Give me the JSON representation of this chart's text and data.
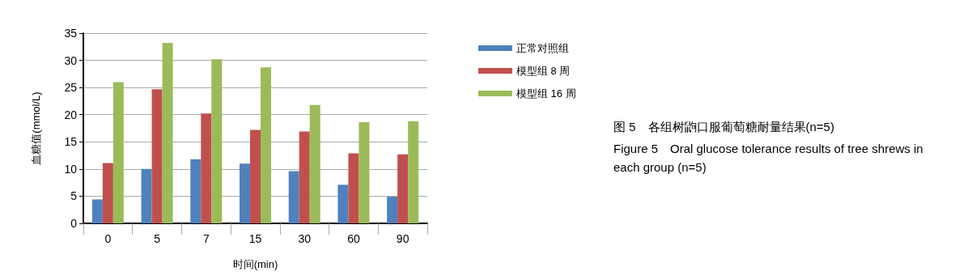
{
  "chart_data": {
    "type": "bar",
    "title": "图 5　各组树鼩口服葡萄糖耐量结果(n=5)",
    "subtitle": "Figure 5　Oral glucose tolerance results of tree shrews in each group (n=5)",
    "xlabel": "时间(min)",
    "ylabel": "血糖值(mmol/L)",
    "categories": [
      "0",
      "5",
      "7",
      "15",
      "30",
      "60",
      "90"
    ],
    "series": [
      {
        "name": "正常对照组",
        "color": "#4f81bd",
        "values": [
          4.4,
          10.0,
          11.8,
          11.0,
          9.6,
          7.1,
          4.9
        ]
      },
      {
        "name": "模型组 8 周",
        "color": "#c0504d",
        "values": [
          11.1,
          24.7,
          20.2,
          17.2,
          16.9,
          12.9,
          12.7
        ]
      },
      {
        "name": "模型组 16 周",
        "color": "#9bbb59",
        "values": [
          26.0,
          33.2,
          30.2,
          28.7,
          21.8,
          18.6,
          18.8
        ]
      }
    ],
    "ylim": [
      0,
      35
    ],
    "yticks": [
      0,
      5,
      10,
      15,
      20,
      25,
      30,
      35
    ],
    "grid": "y",
    "legend": "right"
  }
}
